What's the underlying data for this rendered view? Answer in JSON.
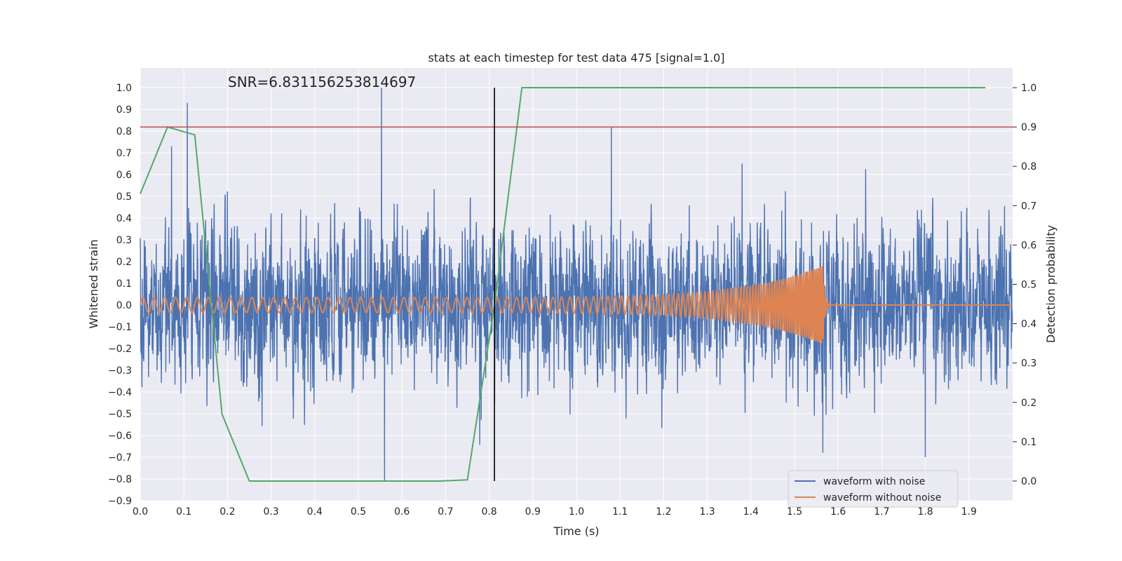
{
  "chart_data": {
    "type": "line",
    "title": "stats at each timestep for test data 475 [signal=1.0]",
    "annotation": "SNR=6.831156253814697",
    "xlabel": "Time (s)",
    "ylabel": "Whitened strain",
    "y2label": "Detection probability",
    "xlim": [
      0.0,
      2.0
    ],
    "ylim": [
      -0.9,
      1.09
    ],
    "y2lim": [
      -0.05,
      1.05
    ],
    "xticks": [
      0.0,
      0.1,
      0.2,
      0.3,
      0.4,
      0.5,
      0.6,
      0.7,
      0.8,
      0.9,
      1.0,
      1.1,
      1.2,
      1.3,
      1.4,
      1.5,
      1.6,
      1.7,
      1.8,
      1.9
    ],
    "xtick_labels": [
      "0.0",
      "0.1",
      "0.2",
      "0.3",
      "0.4",
      "0.5",
      "0.6",
      "0.7",
      "0.8",
      "0.9",
      "1.0",
      "1.1",
      "1.2",
      "1.3",
      "1.4",
      "1.5",
      "1.6",
      "1.7",
      "1.8",
      "1.9"
    ],
    "yticks": [
      -0.9,
      -0.8,
      -0.7,
      -0.6,
      -0.5,
      -0.4,
      -0.3,
      -0.2,
      -0.1,
      0.0,
      0.1,
      0.2,
      0.3,
      0.4,
      0.5,
      0.6,
      0.7,
      0.8,
      0.9,
      1.0
    ],
    "ytick_labels": [
      "−0.9",
      "−0.8",
      "−0.7",
      "−0.6",
      "−0.5",
      "−0.4",
      "−0.3",
      "−0.2",
      "−0.1",
      "0.0",
      "0.1",
      "0.2",
      "0.3",
      "0.4",
      "0.5",
      "0.6",
      "0.7",
      "0.8",
      "0.9",
      "1.0"
    ],
    "y2ticks": [
      0.0,
      0.1,
      0.2,
      0.3,
      0.4,
      0.5,
      0.6,
      0.7,
      0.8,
      0.9,
      1.0
    ],
    "y2tick_labels": [
      "0.0",
      "0.1",
      "0.2",
      "0.3",
      "0.4",
      "0.5",
      "0.6",
      "0.7",
      "0.8",
      "0.9",
      "1.0"
    ],
    "threshold_y2": 0.9,
    "marker_time": 0.812,
    "marker_y2_range": [
      0.0,
      1.0
    ],
    "waveform_with_noise": {
      "name": "waveform with noise",
      "color": "#4c72b0",
      "sample_rate_hz": 2048,
      "approx_std": 0.22,
      "peaks": [
        {
          "t": 0.108,
          "v": 0.93
        },
        {
          "t": 0.553,
          "v": 1.0
        },
        {
          "t": 0.56,
          "v": -0.81
        },
        {
          "t": 1.08,
          "v": 0.82
        },
        {
          "t": 0.072,
          "v": 0.73
        },
        {
          "t": 1.38,
          "v": 0.65
        },
        {
          "t": 1.565,
          "v": -0.68
        },
        {
          "t": 1.8,
          "v": -0.7
        }
      ]
    },
    "waveform_without_noise": {
      "name": "waveform without noise",
      "color": "#dd8452",
      "amplitude_start": 0.035,
      "amplitude_peak": 0.18,
      "merger_time": 1.565,
      "freq_start_hz": 40,
      "freq_merger_hz": 250
    },
    "detection_probability": {
      "name": "Detection probability",
      "color": "#55a868",
      "t": [
        0.0,
        0.0625,
        0.125,
        0.1875,
        0.25,
        0.3125,
        0.375,
        0.4375,
        0.5,
        0.5625,
        0.625,
        0.6875,
        0.75,
        0.8125,
        0.875,
        0.9375,
        1.0,
        1.0625,
        1.125,
        1.1875,
        1.25,
        1.3125,
        1.375,
        1.4375,
        1.5,
        1.5625,
        1.625,
        1.6875,
        1.75,
        1.8125,
        1.875,
        1.9375
      ],
      "values": [
        0.73,
        0.9,
        0.88,
        0.17,
        0.0,
        0.0,
        0.0,
        0.0,
        0.0,
        0.0,
        0.0,
        0.0,
        0.003,
        0.45,
        1.0,
        1.0,
        1.0,
        1.0,
        1.0,
        1.0,
        1.0,
        1.0,
        1.0,
        1.0,
        1.0,
        1.0,
        1.0,
        1.0,
        1.0,
        1.0,
        1.0,
        1.0
      ]
    },
    "colors": {
      "threshold": "#c44e52",
      "marker": "#000000",
      "plot_background": "#eaeaf2",
      "grid": "#ffffff"
    },
    "legend": {
      "placement": "lower-right",
      "entries": [
        {
          "label": "waveform with noise",
          "color": "#4c72b0"
        },
        {
          "label": "waveform without noise",
          "color": "#dd8452"
        }
      ]
    }
  }
}
